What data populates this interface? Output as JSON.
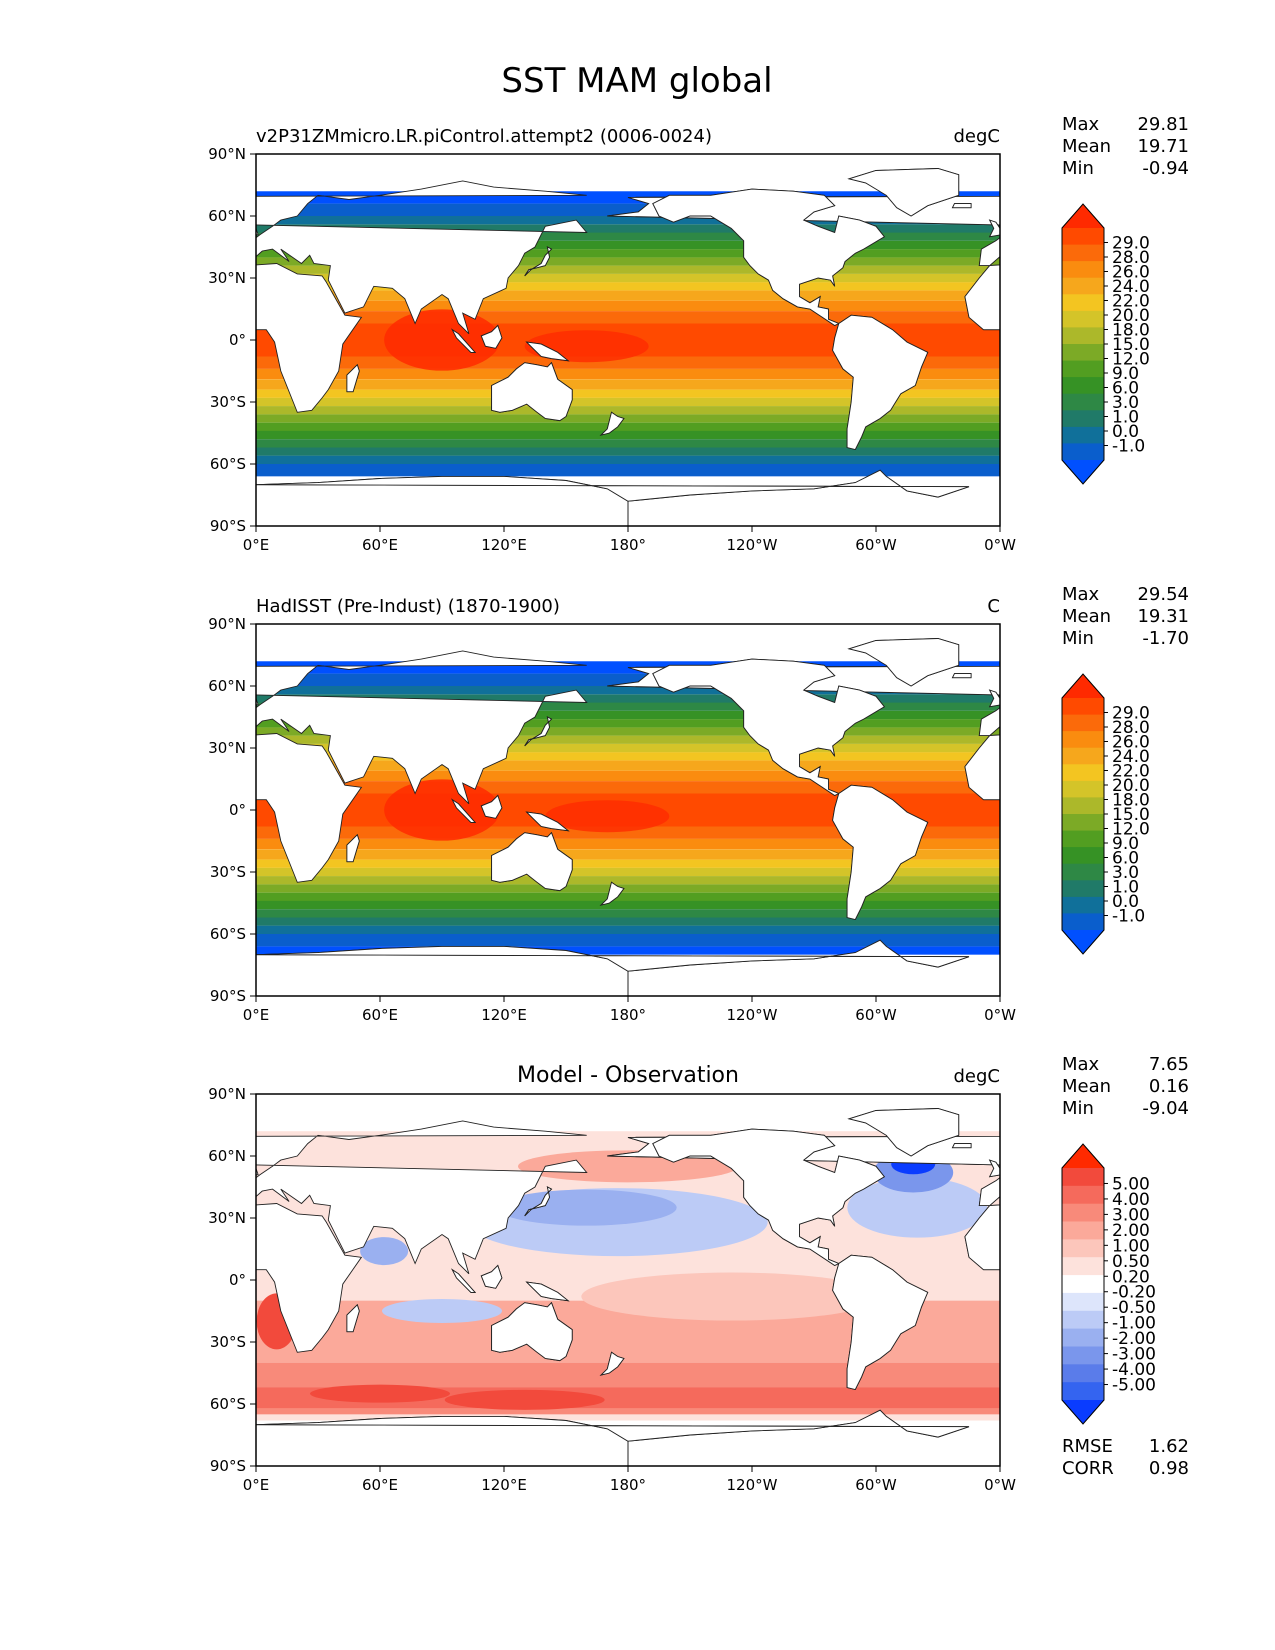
{
  "title": "SST MAM global",
  "axes": {
    "y_ticks": [
      "90°N",
      "60°N",
      "30°N",
      "0°",
      "30°S",
      "60°S",
      "90°S"
    ],
    "x_ticks": [
      "0°E",
      "60°E",
      "120°E",
      "180°",
      "120°W",
      "60°W",
      "0°W"
    ]
  },
  "panels": [
    {
      "left_title": "v2P31ZMmicro.LR.piControl.attempt2 (0006-0024)",
      "center_title": "",
      "units": "degC",
      "stats": [
        {
          "label": "Max",
          "value": "29.81"
        },
        {
          "label": "Mean",
          "value": "19.71"
        },
        {
          "label": "Min",
          "value": "-0.94"
        }
      ],
      "colorbar": {
        "labels": [
          "29.0",
          "28.0",
          "26.0",
          "24.0",
          "22.0",
          "20.0",
          "18.0",
          "15.0",
          "12.0",
          "9.0",
          "6.0",
          "3.0",
          "1.0",
          "0.0",
          "-1.0"
        ],
        "colors": [
          "#ff2a00",
          "#ff4a00",
          "#fb6a0a",
          "#fa8c0f",
          "#f6a71c",
          "#f3c521",
          "#d4c429",
          "#acb82a",
          "#7caa26",
          "#529e21",
          "#369225",
          "#2e8845",
          "#207a68",
          "#10709a",
          "#0a5ecc",
          "#0050ff"
        ]
      },
      "footer_stats": []
    },
    {
      "left_title": "HadISST (Pre-Indust) (1870-1900)",
      "center_title": "",
      "units": "C",
      "stats": [
        {
          "label": "Max",
          "value": "29.54"
        },
        {
          "label": "Mean",
          "value": "19.31"
        },
        {
          "label": "Min",
          "value": "-1.70"
        }
      ],
      "colorbar": {
        "labels": [
          "29.0",
          "28.0",
          "26.0",
          "24.0",
          "22.0",
          "20.0",
          "18.0",
          "15.0",
          "12.0",
          "9.0",
          "6.0",
          "3.0",
          "1.0",
          "0.0",
          "-1.0"
        ],
        "colors": [
          "#ff2a00",
          "#ff4a00",
          "#fb6a0a",
          "#fa8c0f",
          "#f6a71c",
          "#f3c521",
          "#d4c429",
          "#acb82a",
          "#7caa26",
          "#529e21",
          "#369225",
          "#2e8845",
          "#207a68",
          "#10709a",
          "#0a5ecc",
          "#0050ff"
        ]
      },
      "footer_stats": []
    },
    {
      "left_title": "",
      "center_title": "Model - Observation",
      "units": "degC",
      "stats": [
        {
          "label": "Max",
          "value": "7.65"
        },
        {
          "label": "Mean",
          "value": "0.16"
        },
        {
          "label": "Min",
          "value": "-9.04"
        }
      ],
      "colorbar": {
        "labels": [
          "5.00",
          "4.00",
          "3.00",
          "2.00",
          "1.00",
          "0.50",
          "0.20",
          "-0.20",
          "-0.50",
          "-1.00",
          "-2.00",
          "-3.00",
          "-4.00",
          "-5.00"
        ],
        "colors": [
          "#ff2a00",
          "#f24a3c",
          "#f56a5c",
          "#f88a7a",
          "#fba99a",
          "#fcc6bb",
          "#fde2dc",
          "#ffffff",
          "#dde5fb",
          "#bccbf6",
          "#9ab0f0",
          "#7a96ec",
          "#5a7cea",
          "#3464f0",
          "#0a3cff"
        ]
      },
      "footer_stats": [
        {
          "label": "RMSE",
          "value": "1.62"
        },
        {
          "label": "CORR",
          "value": "0.98"
        }
      ]
    }
  ]
}
